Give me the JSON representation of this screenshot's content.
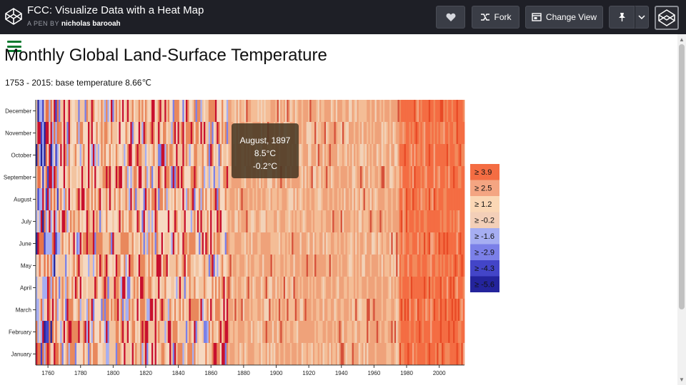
{
  "topbar": {
    "title": "FCC: Visualize Data with a Heat Map",
    "author_prefix": "A PEN BY",
    "author": "nicholas barooah",
    "fork_label": "Fork",
    "change_view_label": "Change View"
  },
  "page": {
    "title": "Monthly Global Land-Surface Temperature",
    "subtitle": "1753 - 2015: base temperature 8.66℃"
  },
  "tooltip": {
    "date": "August, 1897",
    "temp": "8.5°C",
    "variance": "-0.2°C"
  },
  "colors": {
    "topbar": "#1e1f26",
    "menu_icon": "#0c7a2f"
  },
  "chart_data": {
    "type": "heatmap",
    "title": "Monthly Global Land-Surface Temperature",
    "subtitle": "1753 - 2015: base temperature 8.66℃",
    "x_range": [
      1753,
      2015
    ],
    "x_ticks": [
      "1760",
      "1780",
      "1800",
      "1820",
      "1840",
      "1860",
      "1880",
      "1900",
      "1920",
      "1940",
      "1960",
      "1980",
      "2000"
    ],
    "y_categories": [
      "January",
      "February",
      "March",
      "April",
      "May",
      "June",
      "July",
      "August",
      "September",
      "October",
      "November",
      "December"
    ],
    "base_temperature": 8.66,
    "legend": [
      {
        "label": "≥ 3.9",
        "color": "#f46d43"
      },
      {
        "label": "≥ 2.5",
        "color": "#f4a582"
      },
      {
        "label": "≥ 1.2",
        "color": "#fbd7b5"
      },
      {
        "label": "≥ -0.2",
        "color": "#f3cfb8"
      },
      {
        "label": "≥ -1.6",
        "color": "#a6aef2"
      },
      {
        "label": "≥ -2.9",
        "color": "#7b80e8"
      },
      {
        "label": "≥ -4.3",
        "color": "#4345c8"
      },
      {
        "label": "≥ -5.6",
        "color": "#24249c"
      }
    ],
    "legend_placement": "right"
  }
}
